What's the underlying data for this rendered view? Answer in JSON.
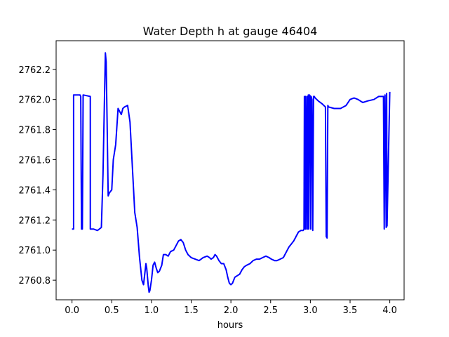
{
  "chart_data": {
    "type": "line",
    "title": "Water Depth h at gauge 46404",
    "xlabel": "hours",
    "ylabel": "",
    "xlim": [
      -0.2,
      4.18
    ],
    "ylim": [
      2760.67,
      2762.39
    ],
    "xticks": [
      0.0,
      0.5,
      1.0,
      1.5,
      2.0,
      2.5,
      3.0,
      3.5,
      4.0
    ],
    "xtick_labels": [
      "0.0",
      "0.5",
      "1.0",
      "1.5",
      "2.0",
      "2.5",
      "3.0",
      "3.5",
      "4.0"
    ],
    "yticks": [
      2760.8,
      2761.0,
      2761.2,
      2761.4,
      2761.6,
      2761.8,
      2762.0,
      2762.2
    ],
    "ytick_labels": [
      "2760.8",
      "2761.0",
      "2761.2",
      "2761.4",
      "2761.6",
      "2761.8",
      "2762.0",
      "2762.2"
    ],
    "grid": false,
    "series": [
      {
        "color": "#0000ff",
        "x": [
          0.0,
          0.02,
          0.02,
          0.1,
          0.11,
          0.12,
          0.13,
          0.14,
          0.23,
          0.23,
          0.27,
          0.32,
          0.37,
          0.39,
          0.41,
          0.42,
          0.43,
          0.44,
          0.455,
          0.47,
          0.5,
          0.52,
          0.55,
          0.58,
          0.6,
          0.62,
          0.64,
          0.66,
          0.7,
          0.73,
          0.76,
          0.79,
          0.82,
          0.85,
          0.88,
          0.9,
          0.92,
          0.93,
          0.94,
          0.96,
          0.97,
          0.98,
          1.0,
          1.02,
          1.04,
          1.06,
          1.08,
          1.1,
          1.13,
          1.15,
          1.18,
          1.21,
          1.24,
          1.28,
          1.31,
          1.34,
          1.37,
          1.4,
          1.43,
          1.46,
          1.5,
          1.55,
          1.6,
          1.65,
          1.7,
          1.73,
          1.75,
          1.78,
          1.8,
          1.82,
          1.85,
          1.88,
          1.91,
          1.94,
          1.96,
          1.98,
          2.0,
          2.02,
          2.05,
          2.08,
          2.11,
          2.14,
          2.17,
          2.2,
          2.24,
          2.28,
          2.32,
          2.36,
          2.4,
          2.44,
          2.48,
          2.51,
          2.55,
          2.58,
          2.62,
          2.66,
          2.7,
          2.73,
          2.76,
          2.79,
          2.82,
          2.85,
          2.88,
          2.91,
          2.92,
          2.925,
          2.935,
          2.94,
          2.945,
          2.96,
          2.965,
          2.975,
          2.98,
          2.99,
          3.0,
          3.005,
          3.01,
          3.02,
          3.03,
          3.04,
          3.05,
          3.06,
          3.1,
          3.15,
          3.19,
          3.2,
          3.21,
          3.22,
          3.23,
          3.3,
          3.38,
          3.45,
          3.5,
          3.55,
          3.6,
          3.66,
          3.72,
          3.8,
          3.86,
          3.9,
          3.92,
          3.93,
          3.94,
          3.955,
          3.96,
          3.965,
          4.0
        ],
        "y": [
          2761.14,
          2761.14,
          2762.03,
          2762.03,
          2762.02,
          2761.14,
          2761.14,
          2762.03,
          2762.02,
          2761.14,
          2761.14,
          2761.13,
          2761.15,
          2761.5,
          2762.05,
          2762.31,
          2762.25,
          2761.9,
          2761.36,
          2761.38,
          2761.4,
          2761.6,
          2761.7,
          2761.94,
          2761.92,
          2761.9,
          2761.94,
          2761.95,
          2761.96,
          2761.85,
          2761.55,
          2761.25,
          2761.15,
          2760.95,
          2760.8,
          2760.77,
          2760.86,
          2760.91,
          2760.88,
          2760.76,
          2760.72,
          2760.73,
          2760.8,
          2760.9,
          2760.92,
          2760.88,
          2760.85,
          2760.86,
          2760.9,
          2760.97,
          2760.97,
          2760.96,
          2760.99,
          2761.0,
          2761.03,
          2761.06,
          2761.07,
          2761.05,
          2761.0,
          2760.97,
          2760.95,
          2760.94,
          2760.93,
          2760.95,
          2760.96,
          2760.95,
          2760.94,
          2760.95,
          2760.97,
          2760.96,
          2760.93,
          2760.91,
          2760.91,
          2760.87,
          2760.82,
          2760.78,
          2760.77,
          2760.78,
          2760.82,
          2760.83,
          2760.84,
          2760.87,
          2760.89,
          2760.9,
          2760.91,
          2760.93,
          2760.94,
          2760.94,
          2760.95,
          2760.96,
          2760.95,
          2760.94,
          2760.93,
          2760.93,
          2760.94,
          2760.95,
          2760.99,
          2761.02,
          2761.04,
          2761.06,
          2761.09,
          2761.12,
          2761.13,
          2761.13,
          2761.14,
          2762.02,
          2761.14,
          2762.02,
          2761.14,
          2762.02,
          2761.14,
          2762.03,
          2761.14,
          2762.03,
          2762.02,
          2761.14,
          2762.02,
          2762.0,
          2761.13,
          2762.02,
          2762.02,
          2762.01,
          2761.99,
          2761.97,
          2761.95,
          2761.09,
          2761.08,
          2761.96,
          2761.95,
          2761.94,
          2761.94,
          2761.96,
          2762.0,
          2762.01,
          2762.0,
          2761.98,
          2761.99,
          2762.0,
          2762.02,
          2762.02,
          2762.02,
          2761.14,
          2762.03,
          2761.15,
          2762.04,
          2761.16,
          2762.05
        ]
      }
    ]
  }
}
